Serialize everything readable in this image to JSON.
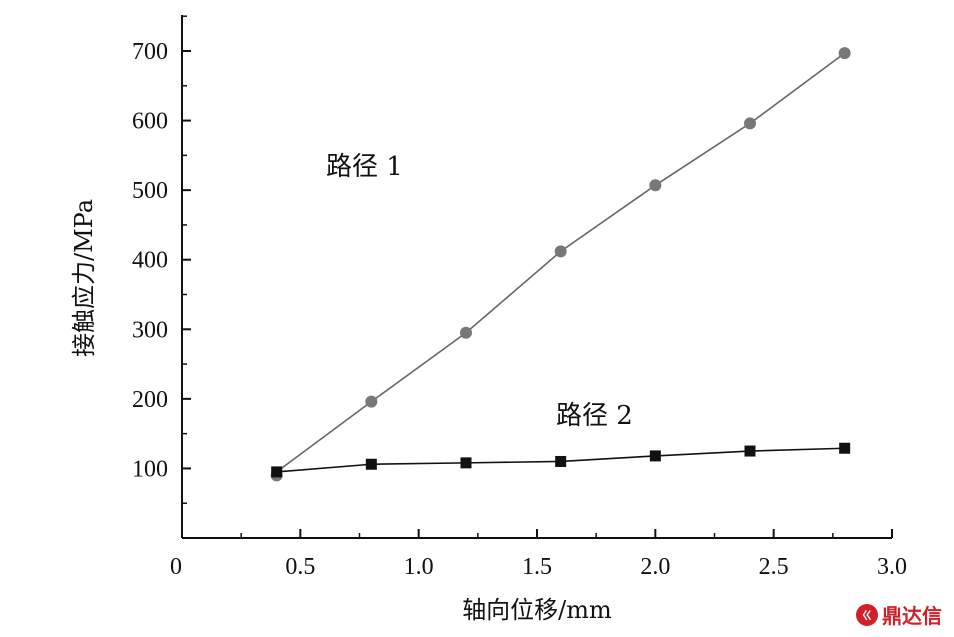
{
  "chart_data": {
    "type": "line",
    "xlabel": "轴向位移/mm",
    "ylabel": "接触应力/MPa",
    "xlim": [
      0,
      3.0
    ],
    "ylim": [
      0,
      750
    ],
    "x_ticks": [
      "0",
      "0.5",
      "1.0",
      "1.5",
      "2.0",
      "2.5",
      "3.0"
    ],
    "y_ticks": [
      "100",
      "200",
      "300",
      "400",
      "500",
      "600",
      "700"
    ],
    "series": [
      {
        "name": "路径 1",
        "marker": "circle",
        "color": "#777777",
        "x": [
          0.4,
          0.8,
          1.2,
          1.6,
          2.0,
          2.4,
          2.8
        ],
        "y": [
          90,
          196,
          295,
          412,
          507,
          596,
          697
        ]
      },
      {
        "name": "路径 2",
        "marker": "square",
        "color": "#111111",
        "x": [
          0.4,
          0.8,
          1.2,
          1.6,
          2.0,
          2.4,
          2.8
        ],
        "y": [
          95,
          106,
          108,
          110,
          118,
          125,
          129
        ]
      }
    ],
    "grid": false
  },
  "watermark": {
    "logo": "ㄍ",
    "text": "鼎达信"
  }
}
